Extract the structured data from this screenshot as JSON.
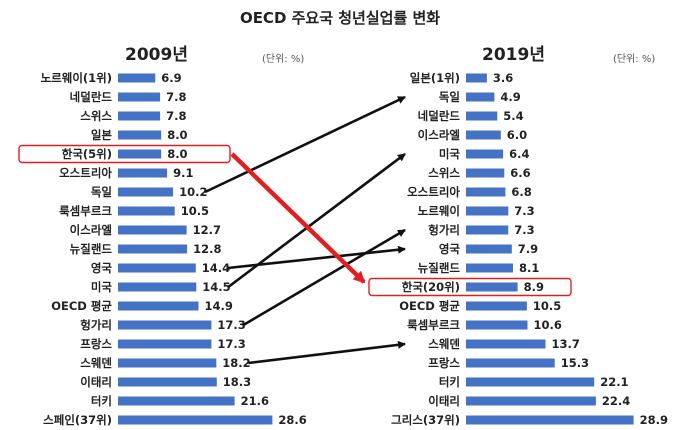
{
  "title": "OECD 주요국 청년실업률 변화",
  "unit_label": "(단위: %)",
  "colors": {
    "bar": "#4472C4",
    "highlight": "#E02020",
    "arrow": "#111111"
  },
  "chart_data": [
    {
      "type": "bar",
      "orientation": "horizontal",
      "title": "2009년",
      "unit": "(단위: %)",
      "categories": [
        "노르웨이(1위)",
        "네덜란드",
        "스위스",
        "일본",
        "한국(5위)",
        "오스트리아",
        "독일",
        "룩셈부르크",
        "이스라엘",
        "뉴질랜드",
        "영국",
        "미국",
        "OECD 평균",
        "헝가리",
        "프랑스",
        "스웨덴",
        "이태리",
        "터키",
        "스페인(37위)"
      ],
      "values": [
        6.9,
        7.8,
        7.8,
        8.0,
        8.0,
        9.1,
        10.2,
        10.5,
        12.7,
        12.8,
        14.4,
        14.5,
        14.9,
        17.3,
        17.3,
        18.2,
        18.3,
        21.6,
        28.6
      ],
      "highlight": "한국(5위)"
    },
    {
      "type": "bar",
      "orientation": "horizontal",
      "title": "2019년",
      "unit": "(단위: %)",
      "categories": [
        "일본(1위)",
        "독일",
        "네덜란드",
        "이스라엘",
        "미국",
        "스위스",
        "오스트리아",
        "노르웨이",
        "헝가리",
        "영국",
        "뉴질랜드",
        "한국(20위)",
        "OECD 평균",
        "룩셈부르크",
        "스웨덴",
        "프랑스",
        "터키",
        "이태리",
        "그리스(37위)"
      ],
      "values": [
        3.6,
        4.9,
        5.4,
        6.0,
        6.4,
        6.6,
        6.8,
        7.3,
        7.3,
        7.9,
        8.1,
        8.9,
        10.5,
        10.6,
        13.7,
        15.3,
        22.1,
        22.4,
        28.9
      ],
      "highlight": "한국(20위)"
    }
  ],
  "arrows": [
    {
      "from": "독일",
      "to": "독일"
    },
    {
      "from": "미국",
      "to": "미국"
    },
    {
      "from": "헝가리",
      "to": "헝가리"
    },
    {
      "from": "영국",
      "to": "영국"
    },
    {
      "from": "스웨덴",
      "to": "스웨덴"
    }
  ],
  "korea_arrow": {
    "from": "한국(5위)",
    "to": "한국(20위)"
  }
}
